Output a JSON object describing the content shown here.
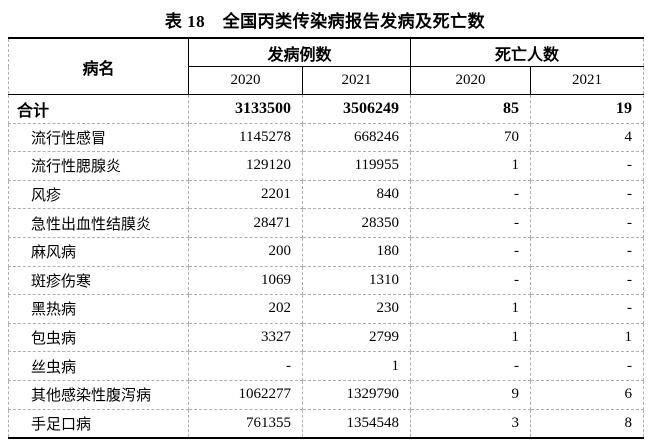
{
  "title": "表 18　全国丙类传染病报告发病及死亡数",
  "table": {
    "columns": {
      "disease": "病名",
      "cases_group": "发病例数",
      "deaths_group": "死亡人数",
      "cases_year_2020": "2020",
      "cases_year_2021": "2021",
      "deaths_year_2020": "2020",
      "deaths_year_2021": "2021"
    },
    "rows": [
      {
        "name": "合计",
        "total": true,
        "values": [
          "3133500",
          "3506249",
          "85",
          "19"
        ]
      },
      {
        "name": "流行性感冒",
        "total": false,
        "values": [
          "1145278",
          "668246",
          "70",
          "4"
        ]
      },
      {
        "name": "流行性腮腺炎",
        "total": false,
        "values": [
          "129120",
          "119955",
          "1",
          "-"
        ]
      },
      {
        "name": "风疹",
        "total": false,
        "values": [
          "2201",
          "840",
          "-",
          "-"
        ]
      },
      {
        "name": "急性出血性结膜炎",
        "total": false,
        "values": [
          "28471",
          "28350",
          "-",
          "-"
        ]
      },
      {
        "name": "麻风病",
        "total": false,
        "values": [
          "200",
          "180",
          "-",
          "-"
        ]
      },
      {
        "name": "斑疹伤寒",
        "total": false,
        "values": [
          "1069",
          "1310",
          "-",
          "-"
        ]
      },
      {
        "name": "黑热病",
        "total": false,
        "values": [
          "202",
          "230",
          "1",
          "-"
        ]
      },
      {
        "name": "包虫病",
        "total": false,
        "values": [
          "3327",
          "2799",
          "1",
          "1"
        ]
      },
      {
        "name": "丝虫病",
        "total": false,
        "values": [
          "-",
          "1",
          "-",
          "-"
        ]
      },
      {
        "name": "其他感染性腹泻病",
        "total": false,
        "values": [
          "1062277",
          "1329790",
          "9",
          "6"
        ]
      },
      {
        "name": "手足口病",
        "total": false,
        "values": [
          "761355",
          "1354548",
          "3",
          "8"
        ]
      }
    ]
  },
  "colors": {
    "text": "#000000",
    "grid_dashed": "#b0b0b0",
    "header_line": "#000000",
    "background": "#ffffff"
  }
}
